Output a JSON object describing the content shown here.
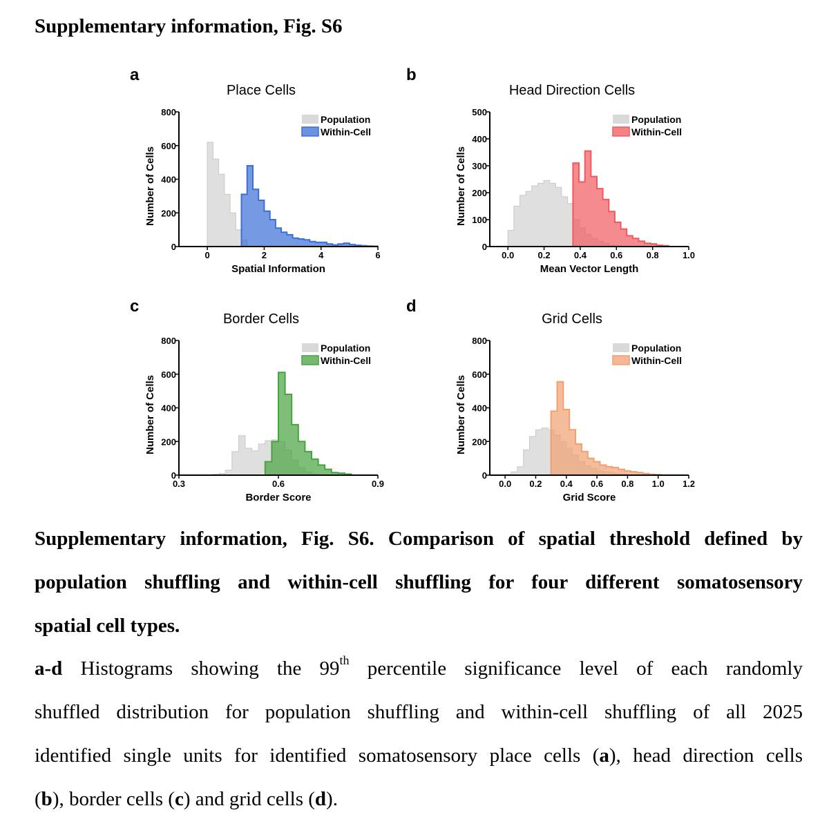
{
  "header": "Supplementary information, Fig. S6",
  "legend": {
    "population": "Population",
    "within_cell": "Within-Cell"
  },
  "ylabel": "Number of Cells",
  "colors": {
    "population": "#d9d9d9",
    "population_edge": "#c8c8c8"
  },
  "chart_data": [
    {
      "panel": "a",
      "type": "bar",
      "title": "Place Cells",
      "xlabel": "Spatial Information",
      "ylabel": "Number of Cells",
      "xlim": [
        -1,
        6
      ],
      "ylim": [
        0,
        800
      ],
      "xticks": [
        0,
        2,
        4,
        6
      ],
      "xtick_labels": [
        "0",
        "2",
        "4",
        "6"
      ],
      "yticks": [
        0,
        200,
        400,
        600,
        800
      ],
      "ytick_labels": [
        "0",
        "200",
        "400",
        "600",
        "800"
      ],
      "color": "#3b6fd6",
      "series": [
        {
          "name": "Population",
          "x0": 0.0,
          "width": 0.2,
          "values": [
            620,
            520,
            430,
            310,
            200,
            100,
            40
          ]
        },
        {
          "name": "Within-Cell",
          "x0": 1.2,
          "width": 0.2,
          "values": [
            310,
            480,
            340,
            275,
            210,
            160,
            110,
            85,
            70,
            50,
            45,
            40,
            30,
            25,
            25,
            15,
            10,
            15,
            20,
            12,
            8,
            5,
            3,
            2
          ]
        }
      ]
    },
    {
      "panel": "b",
      "type": "bar",
      "title": "Head Direction Cells",
      "xlabel": "Mean Vector Length",
      "ylabel": "Number of Cells",
      "xlim": [
        -0.1,
        1.0
      ],
      "ylim": [
        0,
        500
      ],
      "xticks": [
        0.0,
        0.2,
        0.4,
        0.6,
        0.8,
        1.0
      ],
      "xtick_labels": [
        "0.0",
        "0.2",
        "0.4",
        "0.6",
        "0.8",
        "1.0"
      ],
      "yticks": [
        0,
        100,
        200,
        300,
        400,
        500
      ],
      "ytick_labels": [
        "0",
        "100",
        "200",
        "300",
        "400",
        "500"
      ],
      "color": "#f05a5f",
      "series": [
        {
          "name": "Population",
          "x0": 0.0,
          "width": 0.033,
          "values": [
            60,
            150,
            190,
            205,
            225,
            235,
            245,
            235,
            220,
            185,
            160,
            100,
            70,
            45,
            30,
            20,
            12,
            6,
            3,
            2
          ]
        },
        {
          "name": "Within-Cell",
          "x0": 0.36,
          "width": 0.033,
          "values": [
            310,
            240,
            355,
            260,
            215,
            175,
            130,
            90,
            65,
            40,
            30,
            20,
            12,
            10,
            5,
            3
          ]
        }
      ]
    },
    {
      "panel": "c",
      "type": "bar",
      "title": "Border Cells",
      "xlabel": "Border Score",
      "ylabel": "Number of Cells",
      "xlim": [
        0.3,
        0.9
      ],
      "ylim": [
        0,
        800
      ],
      "xticks": [
        0.3,
        0.6,
        0.9
      ],
      "xtick_labels": [
        "0.3",
        "0.6",
        "0.9"
      ],
      "yticks": [
        0,
        200,
        400,
        600,
        800
      ],
      "ytick_labels": [
        "0",
        "200",
        "400",
        "600",
        "800"
      ],
      "color": "#47a33f",
      "series": [
        {
          "name": "Population",
          "x0": 0.4,
          "width": 0.02,
          "values": [
            5,
            10,
            30,
            140,
            235,
            160,
            145,
            185,
            205,
            210,
            200,
            150,
            90,
            45,
            20,
            8
          ]
        },
        {
          "name": "Within-Cell",
          "x0": 0.56,
          "width": 0.02,
          "values": [
            80,
            200,
            610,
            480,
            300,
            200,
            140,
            95,
            60,
            35,
            15,
            12,
            6
          ]
        }
      ]
    },
    {
      "panel": "d",
      "type": "bar",
      "title": "Grid Cells",
      "xlabel": "Grid Score",
      "ylabel": "Number of Cells",
      "xlim": [
        -0.1,
        1.2
      ],
      "ylim": [
        0,
        800
      ],
      "xticks": [
        0.0,
        0.2,
        0.4,
        0.6,
        0.8,
        1.0,
        1.2
      ],
      "xtick_labels": [
        "0.0",
        "0.2",
        "0.4",
        "0.6",
        "0.8",
        "1.0",
        "1.2"
      ],
      "yticks": [
        0,
        200,
        400,
        600,
        800
      ],
      "ytick_labels": [
        "0",
        "200",
        "400",
        "600",
        "800"
      ],
      "color": "#f0a070",
      "series": [
        {
          "name": "Population",
          "x0": 0.0,
          "width": 0.04,
          "values": [
            5,
            20,
            50,
            150,
            230,
            270,
            280,
            270,
            240,
            200,
            160,
            120,
            80,
            55,
            40,
            25,
            20,
            15,
            10,
            5
          ]
        },
        {
          "name": "Within-Cell",
          "x0": 0.3,
          "width": 0.04,
          "values": [
            380,
            555,
            390,
            270,
            185,
            140,
            100,
            80,
            60,
            50,
            45,
            35,
            25,
            20,
            15,
            10,
            5,
            3
          ]
        }
      ]
    }
  ],
  "caption": {
    "title_lines": [
      "Supplementary information, Fig. S6. Comparison of spatial threshold defined by",
      "population shuffling and within-cell shuffling for four different somatosensory",
      "spatial cell types."
    ],
    "body_label": "a-d",
    "body_line1_text": " Histograms showing the 99",
    "body_sup": "th",
    "body_line1_rest": " percentile significance level of each randomly",
    "body_line2": "shuffled distribution for population shuffling and within-cell shuffling of all 2025",
    "body_line3_pre": "identified single units for identified somatosensory place cells (",
    "ref_a": "a",
    "body_line3_post": "), head direction cells",
    "paren_open": "(",
    "ref_b": "b",
    "body_line4_a": "), border cells (",
    "ref_c": "c",
    "body_line4_b": ") and grid cells (",
    "ref_d": "d",
    "body_line4_end": ")."
  }
}
